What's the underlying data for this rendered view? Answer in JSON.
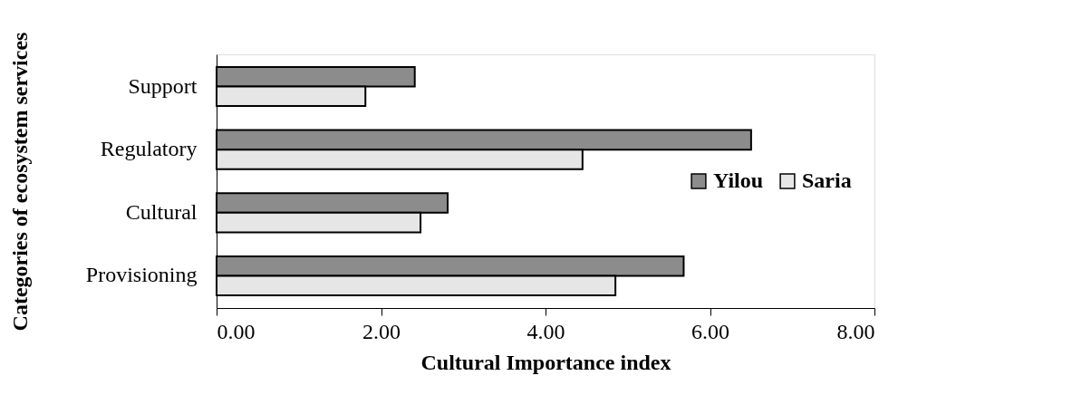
{
  "chart_data": {
    "type": "bar",
    "orientation": "horizontal",
    "xlabel": "Cultural Importance index",
    "ylabel": "Categories of ecosystem services",
    "categories": [
      "Support",
      "Regulatory",
      "Cultural",
      "Provisioning"
    ],
    "series": [
      {
        "name": "Yilou",
        "color": "#8c8c8c",
        "values": [
          2.41,
          6.5,
          2.81,
          5.68
        ]
      },
      {
        "name": "Saria",
        "color": "#e6e6e6",
        "values": [
          1.81,
          4.45,
          2.48,
          4.85
        ]
      }
    ],
    "xlim": [
      0,
      8
    ],
    "xticks": [
      {
        "value": 0,
        "label": "0.00"
      },
      {
        "value": 2,
        "label": "2.00"
      },
      {
        "value": 4,
        "label": "4.00"
      },
      {
        "value": 6,
        "label": "6.00"
      },
      {
        "value": 8,
        "label": "8.00"
      }
    ],
    "grid": false,
    "legend": "right"
  }
}
